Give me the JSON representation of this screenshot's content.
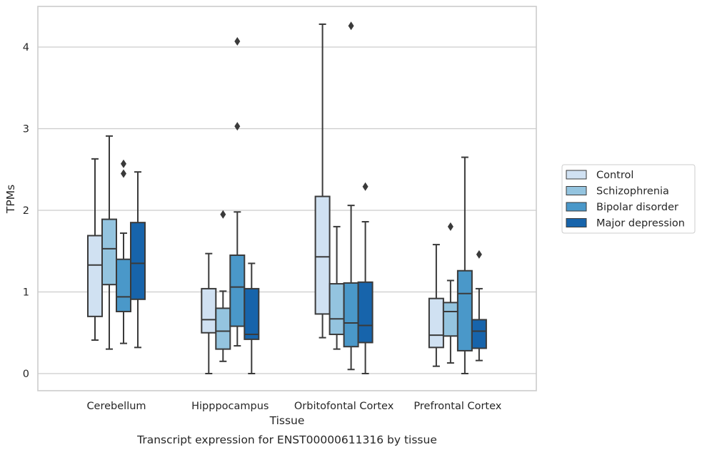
{
  "chart_data": {
    "type": "boxplot",
    "xlabel": "Tissue",
    "ylabel": "TPMs",
    "caption": "Transcript expression for ENST00000611316 by tissue",
    "ylim": [
      -0.2,
      4.5
    ],
    "yticks": [
      0,
      1,
      2,
      3,
      4
    ],
    "grid": "horizontal",
    "legend_position": "right",
    "categories": [
      "Cerebellum",
      "Hipppocampus",
      "Orbitofontal Cortex",
      "Prefrontal Cortex"
    ],
    "series": [
      {
        "name": "Control",
        "color": "#d0e1f2",
        "boxes": [
          {
            "whislo": 0.41,
            "q1": 0.7,
            "med": 1.33,
            "q3": 1.69,
            "whishi": 2.63,
            "fliers": []
          },
          {
            "whislo": 0.0,
            "q1": 0.5,
            "med": 0.66,
            "q3": 1.04,
            "whishi": 1.47,
            "fliers": []
          },
          {
            "whislo": 0.44,
            "q1": 0.73,
            "med": 1.43,
            "q3": 2.17,
            "whishi": 4.28,
            "fliers": []
          },
          {
            "whislo": 0.09,
            "q1": 0.32,
            "med": 0.47,
            "q3": 0.92,
            "whishi": 1.58,
            "fliers": []
          }
        ]
      },
      {
        "name": "Schizophrenia",
        "color": "#94c4df",
        "boxes": [
          {
            "whislo": 0.3,
            "q1": 1.09,
            "med": 1.53,
            "q3": 1.89,
            "whishi": 2.91,
            "fliers": []
          },
          {
            "whislo": 0.15,
            "q1": 0.3,
            "med": 0.52,
            "q3": 0.8,
            "whishi": 1.01,
            "fliers": [
              1.95
            ]
          },
          {
            "whislo": 0.3,
            "q1": 0.48,
            "med": 0.67,
            "q3": 1.1,
            "whishi": 1.8,
            "fliers": []
          },
          {
            "whislo": 0.13,
            "q1": 0.46,
            "med": 0.76,
            "q3": 0.87,
            "whishi": 1.14,
            "fliers": [
              1.8
            ]
          }
        ]
      },
      {
        "name": "Bipolar disorder",
        "color": "#4a98c9",
        "boxes": [
          {
            "whislo": 0.37,
            "q1": 0.76,
            "med": 0.94,
            "q3": 1.4,
            "whishi": 1.72,
            "fliers": [
              2.45,
              2.57
            ]
          },
          {
            "whislo": 0.34,
            "q1": 0.58,
            "med": 1.06,
            "q3": 1.45,
            "whishi": 1.98,
            "fliers": [
              3.03,
              4.07
            ]
          },
          {
            "whislo": 0.05,
            "q1": 0.33,
            "med": 0.62,
            "q3": 1.11,
            "whishi": 2.06,
            "fliers": [
              4.26
            ]
          },
          {
            "whislo": 0.0,
            "q1": 0.28,
            "med": 0.98,
            "q3": 1.26,
            "whishi": 2.65,
            "fliers": []
          }
        ]
      },
      {
        "name": "Major depression",
        "color": "#1764ab",
        "boxes": [
          {
            "whislo": 0.32,
            "q1": 0.91,
            "med": 1.35,
            "q3": 1.85,
            "whishi": 2.47,
            "fliers": []
          },
          {
            "whislo": 0.0,
            "q1": 0.42,
            "med": 0.48,
            "q3": 1.04,
            "whishi": 1.35,
            "fliers": []
          },
          {
            "whislo": 0.0,
            "q1": 0.38,
            "med": 0.59,
            "q3": 1.12,
            "whishi": 1.86,
            "fliers": [
              2.29
            ]
          },
          {
            "whislo": 0.16,
            "q1": 0.31,
            "med": 0.52,
            "q3": 0.66,
            "whishi": 1.04,
            "fliers": [
              1.46
            ]
          }
        ]
      }
    ]
  },
  "colors": {
    "grid": "#cccccc",
    "frame": "#cccccc",
    "stroke": "#3a3a3a",
    "text": "#262626"
  }
}
